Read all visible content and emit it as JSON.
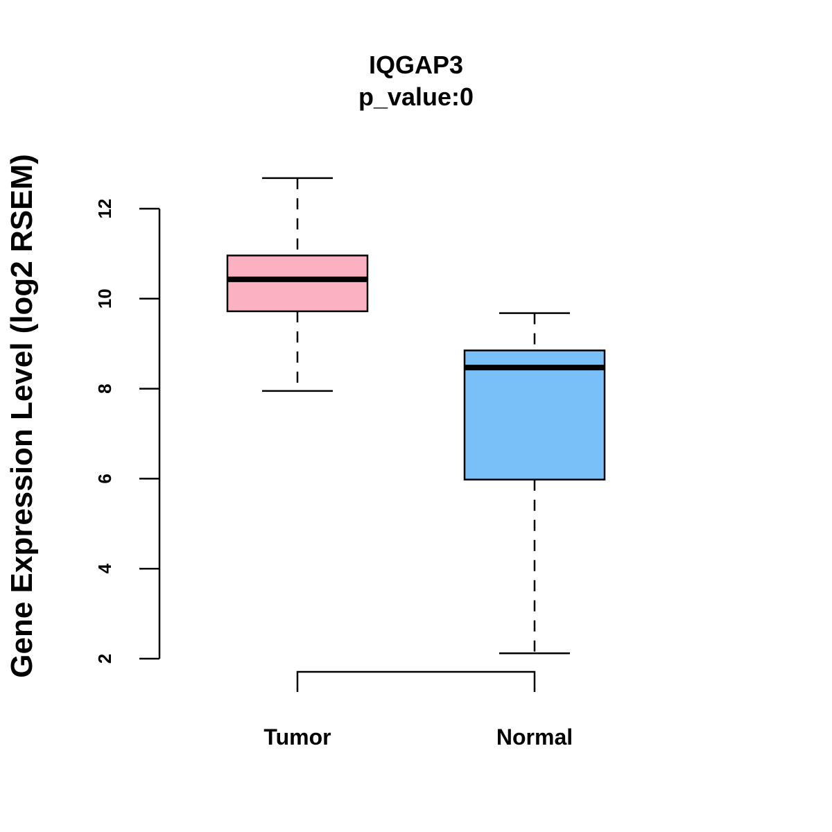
{
  "chart_data": {
    "type": "box",
    "title": "IQGAP3",
    "subtitle": "p_value:0",
    "xlabel": "",
    "ylabel": "Gene Expression Level (log2 RSEM)",
    "ylim": [
      2,
      12
    ],
    "yticks": [
      2,
      4,
      6,
      8,
      10,
      12
    ],
    "categories": [
      "Tumor",
      "Normal"
    ],
    "series": [
      {
        "name": "Tumor",
        "whisker_low": 7.95,
        "q1": 9.72,
        "median": 10.43,
        "q3": 10.96,
        "whisker_high": 12.68,
        "color": "#fcb1c3"
      },
      {
        "name": "Normal",
        "whisker_low": 2.12,
        "q1": 5.98,
        "median": 8.47,
        "q3": 8.85,
        "whisker_high": 9.68,
        "color": "#79c0f9"
      }
    ],
    "comparison_bracket": {
      "between": [
        "Tumor",
        "Normal"
      ]
    }
  }
}
